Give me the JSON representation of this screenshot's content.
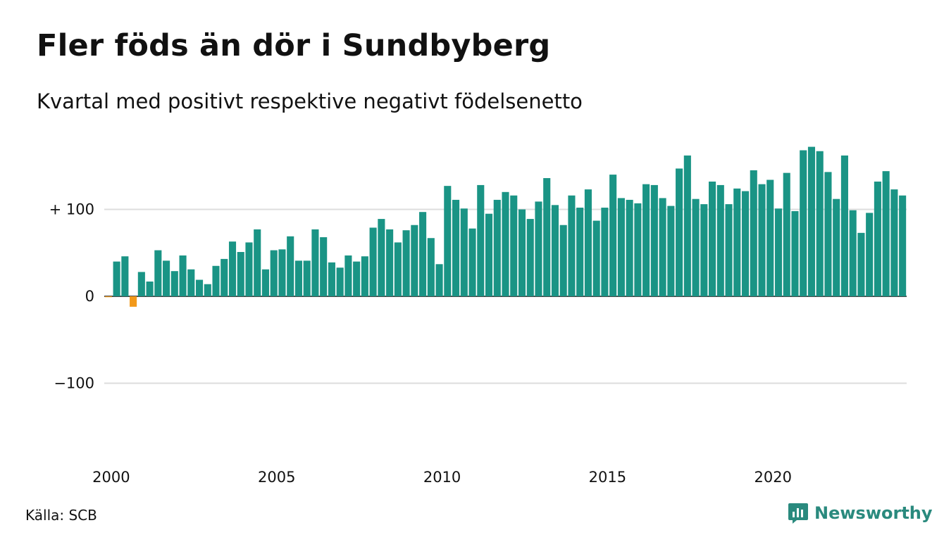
{
  "title": "Fler föds än dör i Sundbyberg",
  "subtitle": "Kvartal med positivt respektive negativt födelsenetto",
  "source": "Källa: SCB",
  "brand": "Newsworthy",
  "colors": {
    "positive": "#1a9485",
    "negative": "#f2991a",
    "grid": "#dddddd",
    "brand": "#2a8a7e"
  },
  "chart_data": {
    "type": "bar",
    "x_start": "2000 Q1",
    "values": [
      -1,
      40,
      46,
      -12,
      28,
      17,
      53,
      41,
      29,
      47,
      31,
      19,
      14,
      35,
      43,
      63,
      51,
      62,
      77,
      31,
      53,
      54,
      69,
      41,
      41,
      77,
      68,
      39,
      33,
      47,
      40,
      46,
      79,
      89,
      77,
      62,
      76,
      82,
      97,
      67,
      37,
      127,
      111,
      101,
      78,
      128,
      95,
      111,
      120,
      116,
      100,
      89,
      109,
      136,
      105,
      82,
      116,
      102,
      123,
      87,
      102,
      140,
      113,
      111,
      107,
      129,
      128,
      113,
      104,
      147,
      162,
      112,
      106,
      132,
      128,
      106,
      124,
      121,
      145,
      129,
      134,
      101,
      142,
      98,
      168,
      172,
      167,
      143,
      112,
      162,
      99,
      73,
      96,
      132,
      144,
      123,
      116
    ],
    "y_ticks": [
      100,
      0,
      -100
    ],
    "y_tick_labels": [
      "+ 100",
      "0",
      "−100"
    ],
    "x_tick_labels": [
      "2000",
      "2005",
      "2010",
      "2015",
      "2020"
    ],
    "ylim": [
      -180,
      180
    ]
  }
}
